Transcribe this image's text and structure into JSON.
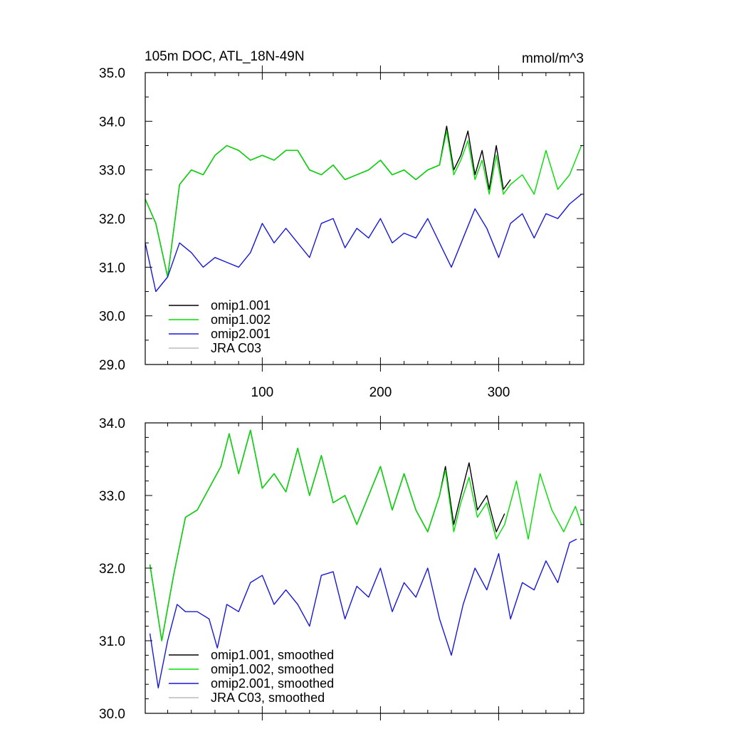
{
  "chart_data": [
    {
      "type": "line",
      "title": "105m DOC, ATL_18N-49N",
      "units": "mmol/m^3",
      "xlim": [
        1,
        372
      ],
      "ylim": [
        29.0,
        35.0
      ],
      "x_ticks": [
        100,
        200,
        300
      ],
      "y_ticks": [
        "29.0",
        "30.0",
        "31.0",
        "32.0",
        "33.0",
        "34.0",
        "35.0"
      ],
      "legend_position": "bottom-left",
      "series": [
        {
          "name": "omip1.001",
          "color": "#000000",
          "x": [
            1,
            10,
            20,
            30,
            40,
            50,
            60,
            70,
            80,
            90,
            100,
            110,
            120,
            130,
            140,
            150,
            160,
            170,
            180,
            190,
            200,
            210,
            220,
            230,
            240,
            250,
            256,
            262,
            268,
            274,
            280,
            286,
            292,
            298,
            304,
            310
          ],
          "y": [
            32.4,
            31.9,
            30.8,
            32.7,
            33.0,
            32.9,
            33.3,
            33.5,
            33.4,
            33.2,
            33.3,
            33.2,
            33.4,
            33.4,
            33.0,
            32.9,
            33.1,
            32.8,
            32.9,
            33.0,
            33.2,
            32.9,
            33.0,
            32.8,
            33.0,
            33.1,
            33.9,
            33.0,
            33.3,
            33.8,
            32.9,
            33.4,
            32.6,
            33.5,
            32.6,
            32.8
          ]
        },
        {
          "name": "omip1.002",
          "color": "#00e000",
          "x": [
            1,
            10,
            20,
            30,
            40,
            50,
            60,
            70,
            80,
            90,
            100,
            110,
            120,
            130,
            140,
            150,
            160,
            170,
            180,
            190,
            200,
            210,
            220,
            230,
            240,
            250,
            256,
            262,
            268,
            274,
            280,
            286,
            292,
            298,
            304,
            310,
            320,
            330,
            340,
            350,
            360,
            370
          ],
          "y": [
            32.4,
            31.9,
            30.8,
            32.7,
            33.0,
            32.9,
            33.3,
            33.5,
            33.4,
            33.2,
            33.3,
            33.2,
            33.4,
            33.4,
            33.0,
            32.9,
            33.1,
            32.8,
            32.9,
            33.0,
            33.2,
            32.9,
            33.0,
            32.8,
            33.0,
            33.1,
            33.8,
            32.9,
            33.2,
            33.6,
            32.8,
            33.2,
            32.5,
            33.3,
            32.5,
            32.7,
            32.9,
            32.5,
            33.4,
            32.6,
            32.9,
            33.5
          ]
        },
        {
          "name": "omip2.001",
          "color": "#1818d8",
          "x": [
            1,
            10,
            20,
            30,
            40,
            50,
            60,
            70,
            80,
            90,
            100,
            110,
            120,
            130,
            140,
            150,
            160,
            170,
            180,
            190,
            200,
            210,
            220,
            230,
            240,
            250,
            260,
            270,
            280,
            290,
            300,
            310,
            320,
            330,
            340,
            350,
            360,
            370
          ],
          "y": [
            31.5,
            30.5,
            30.8,
            31.5,
            31.3,
            31.0,
            31.2,
            31.1,
            31.0,
            31.3,
            31.9,
            31.5,
            31.8,
            31.5,
            31.2,
            31.9,
            32.0,
            31.4,
            31.8,
            31.6,
            32.0,
            31.5,
            31.7,
            31.6,
            32.0,
            31.5,
            31.0,
            31.6,
            32.2,
            31.8,
            31.2,
            31.9,
            32.1,
            31.6,
            32.1,
            32.0,
            32.3,
            32.5
          ]
        },
        {
          "name": "JRA C03",
          "color": "#bbbbbb",
          "x": [],
          "y": []
        }
      ]
    },
    {
      "type": "line",
      "xlim": [
        1,
        372
      ],
      "ylim": [
        30.0,
        34.0
      ],
      "y_ticks": [
        "30.0",
        "31.0",
        "32.0",
        "33.0",
        "34.0"
      ],
      "legend_position": "bottom-left",
      "series": [
        {
          "name": "omip1.001, smoothed",
          "color": "#000000",
          "x": [
            5,
            15,
            25,
            35,
            45,
            55,
            65,
            72,
            80,
            90,
            100,
            110,
            120,
            130,
            140,
            150,
            160,
            170,
            180,
            190,
            200,
            210,
            220,
            230,
            240,
            250,
            255,
            262,
            268,
            275,
            282,
            290,
            298,
            305
          ],
          "y": [
            32.05,
            31.0,
            31.9,
            32.7,
            32.8,
            33.1,
            33.4,
            33.85,
            33.3,
            33.9,
            33.1,
            33.3,
            33.05,
            33.65,
            33.0,
            33.55,
            32.9,
            33.0,
            32.6,
            33.0,
            33.4,
            32.8,
            33.3,
            32.8,
            32.5,
            33.0,
            33.4,
            32.6,
            33.0,
            33.45,
            32.8,
            33.0,
            32.5,
            32.75
          ]
        },
        {
          "name": "omip1.002, smoothed",
          "color": "#00e000",
          "x": [
            5,
            15,
            25,
            35,
            45,
            55,
            65,
            72,
            80,
            90,
            100,
            110,
            120,
            130,
            140,
            150,
            160,
            170,
            180,
            190,
            200,
            210,
            220,
            230,
            240,
            250,
            255,
            262,
            268,
            275,
            282,
            290,
            298,
            305,
            315,
            325,
            335,
            345,
            355,
            365,
            370
          ],
          "y": [
            32.05,
            31.0,
            31.9,
            32.7,
            32.8,
            33.1,
            33.4,
            33.85,
            33.3,
            33.9,
            33.1,
            33.3,
            33.05,
            33.65,
            33.0,
            33.55,
            32.9,
            33.0,
            32.6,
            33.0,
            33.4,
            32.8,
            33.3,
            32.8,
            32.5,
            33.0,
            33.35,
            32.5,
            32.9,
            33.25,
            32.7,
            32.9,
            32.4,
            32.6,
            33.2,
            32.4,
            33.3,
            32.8,
            32.5,
            32.85,
            32.6
          ]
        },
        {
          "name": "omip2.001, smoothed",
          "color": "#1818d8",
          "x": [
            5,
            12,
            20,
            28,
            35,
            45,
            55,
            62,
            70,
            80,
            90,
            100,
            110,
            120,
            130,
            140,
            150,
            160,
            170,
            180,
            190,
            200,
            210,
            220,
            230,
            240,
            250,
            260,
            270,
            280,
            290,
            300,
            310,
            320,
            330,
            340,
            350,
            360,
            366
          ],
          "y": [
            31.1,
            30.35,
            31.0,
            31.5,
            31.4,
            31.4,
            31.3,
            30.9,
            31.5,
            31.4,
            31.8,
            31.9,
            31.5,
            31.7,
            31.5,
            31.2,
            31.9,
            31.95,
            31.3,
            31.75,
            31.6,
            32.0,
            31.4,
            31.8,
            31.6,
            32.0,
            31.3,
            30.8,
            31.5,
            32.0,
            31.7,
            32.2,
            31.3,
            31.8,
            31.7,
            32.1,
            31.8,
            32.35,
            32.4
          ]
        },
        {
          "name": "JRA C03, smoothed",
          "color": "#bbbbbb",
          "x": [],
          "y": []
        }
      ]
    }
  ]
}
